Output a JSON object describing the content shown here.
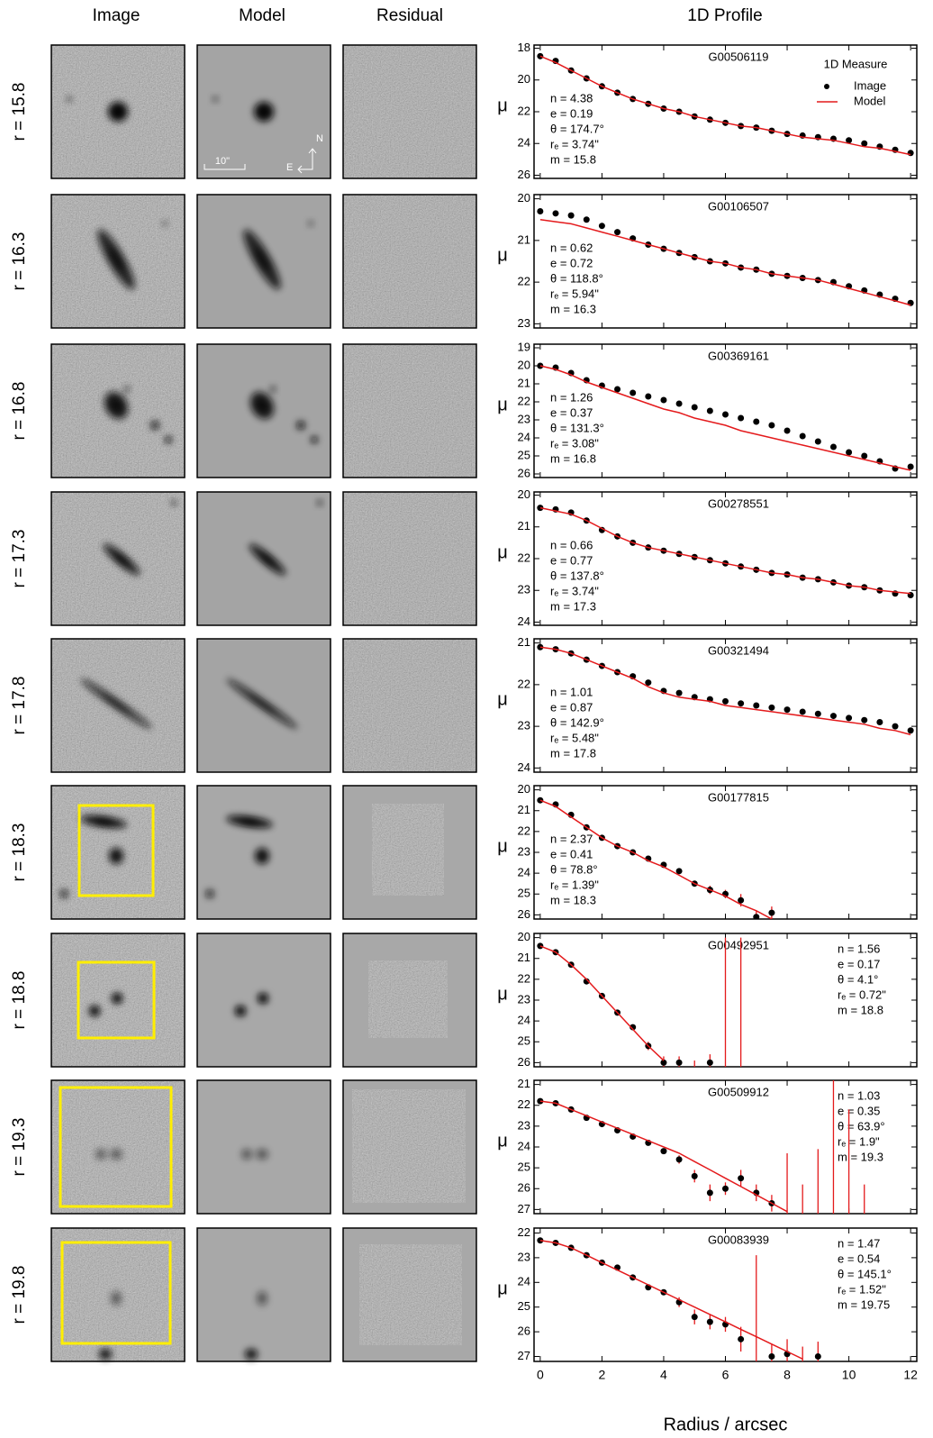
{
  "columns": [
    "Image",
    "Model",
    "Residual",
    "1D Profile"
  ],
  "panel_labels": {
    "scale_bar": "10\"",
    "north": "N",
    "east": "E"
  },
  "chart_data": [
    {
      "type": "scatter",
      "row_label": "r = 15.8",
      "title": "G00506119",
      "ylabel": "μ",
      "params": [
        "n = 4.38",
        "e = 0.19",
        "θ = 174.7°",
        "rₑ = 3.74\"",
        "m = 15.8"
      ],
      "annotation_corner": "left",
      "legend": "upper right",
      "legend_title": "1D Measure",
      "xlim": [
        -0.2,
        12.2
      ],
      "xticks": [
        0,
        2,
        4,
        6,
        8,
        10,
        12
      ],
      "ylim": [
        17.8,
        26.2
      ],
      "yticks": [
        18,
        20,
        22,
        24,
        26
      ],
      "y_inverted": true,
      "x": [
        0,
        0.5,
        1,
        1.5,
        2,
        2.5,
        3,
        3.5,
        4,
        4.5,
        5,
        5.5,
        6,
        6.5,
        7,
        7.5,
        8,
        8.5,
        9,
        9.5,
        10,
        10.5,
        11,
        11.5,
        12
      ],
      "series": [
        {
          "name": "Image",
          "color": "#000000",
          "values": [
            18.5,
            18.8,
            19.4,
            19.9,
            20.4,
            20.8,
            21.2,
            21.5,
            21.8,
            22.0,
            22.3,
            22.5,
            22.7,
            22.9,
            23.0,
            23.2,
            23.4,
            23.5,
            23.6,
            23.7,
            23.8,
            24.0,
            24.2,
            24.4,
            24.6
          ]
        },
        {
          "name": "Model",
          "color": "#e41a1c",
          "values": [
            18.5,
            18.9,
            19.4,
            19.9,
            20.4,
            20.8,
            21.2,
            21.5,
            21.8,
            22.0,
            22.3,
            22.5,
            22.7,
            22.9,
            23.0,
            23.2,
            23.4,
            23.6,
            23.7,
            23.8,
            24.0,
            24.2,
            24.3,
            24.5,
            24.7
          ]
        }
      ]
    },
    {
      "type": "scatter",
      "row_label": "r = 16.3",
      "title": "G00106507",
      "ylabel": "μ",
      "params": [
        "n = 0.62",
        "e = 0.72",
        "θ = 118.8°",
        "rₑ = 5.94\"",
        "m = 16.3"
      ],
      "annotation_corner": "left",
      "xlim": [
        -0.2,
        12.2
      ],
      "xticks": [
        0,
        2,
        4,
        6,
        8,
        10,
        12
      ],
      "ylim": [
        19.9,
        23.1
      ],
      "yticks": [
        20,
        21,
        22,
        23
      ],
      "y_inverted": true,
      "x": [
        0,
        0.5,
        1,
        1.5,
        2,
        2.5,
        3,
        3.5,
        4,
        4.5,
        5,
        5.5,
        6,
        6.5,
        7,
        7.5,
        8,
        8.5,
        9,
        9.5,
        10,
        10.5,
        11,
        11.5,
        12
      ],
      "series": [
        {
          "color": "#000000",
          "values": [
            20.3,
            20.35,
            20.4,
            20.5,
            20.65,
            20.8,
            20.95,
            21.1,
            21.2,
            21.3,
            21.4,
            21.5,
            21.55,
            21.65,
            21.7,
            21.8,
            21.85,
            21.9,
            21.95,
            22.0,
            22.1,
            22.2,
            22.3,
            22.4,
            22.5
          ]
        },
        {
          "color": "#e41a1c",
          "values": [
            20.5,
            20.55,
            20.6,
            20.7,
            20.8,
            20.9,
            21.0,
            21.1,
            21.2,
            21.3,
            21.4,
            21.5,
            21.55,
            21.65,
            21.7,
            21.8,
            21.85,
            21.9,
            21.95,
            22.05,
            22.15,
            22.25,
            22.35,
            22.45,
            22.55
          ]
        }
      ]
    },
    {
      "type": "scatter",
      "row_label": "r = 16.8",
      "title": "G00369161",
      "ylabel": "μ",
      "params": [
        "n = 1.26",
        "e = 0.37",
        "θ = 131.3°",
        "rₑ = 3.08\"",
        "m = 16.8"
      ],
      "annotation_corner": "left",
      "xlim": [
        -0.2,
        12.2
      ],
      "xticks": [
        0,
        2,
        4,
        6,
        8,
        10,
        12
      ],
      "ylim": [
        18.8,
        26.2
      ],
      "yticks": [
        19,
        20,
        21,
        22,
        23,
        24,
        25,
        26
      ],
      "y_inverted": true,
      "x": [
        0,
        0.5,
        1,
        1.5,
        2,
        2.5,
        3,
        3.5,
        4,
        4.5,
        5,
        5.5,
        6,
        6.5,
        7,
        7.5,
        8,
        8.5,
        9,
        9.5,
        10,
        10.5,
        11,
        11.5,
        12
      ],
      "series": [
        {
          "color": "#000000",
          "values": [
            20.0,
            20.1,
            20.4,
            20.8,
            21.1,
            21.3,
            21.5,
            21.7,
            21.9,
            22.1,
            22.3,
            22.5,
            22.7,
            22.9,
            23.1,
            23.3,
            23.6,
            23.9,
            24.2,
            24.5,
            24.8,
            25.0,
            25.3,
            25.7,
            25.6
          ]
        },
        {
          "color": "#e41a1c",
          "values": [
            20.0,
            20.2,
            20.5,
            20.9,
            21.2,
            21.5,
            21.8,
            22.1,
            22.4,
            22.6,
            22.9,
            23.1,
            23.3,
            23.6,
            23.8,
            24.0,
            24.2,
            24.4,
            24.6,
            24.8,
            25.0,
            25.2,
            25.4,
            25.6,
            25.8
          ]
        }
      ]
    },
    {
      "type": "scatter",
      "row_label": "r = 17.3",
      "title": "G00278551",
      "ylabel": "μ",
      "params": [
        "n = 0.66",
        "e = 0.77",
        "θ = 137.8°",
        "rₑ = 3.74\"",
        "m = 17.3"
      ],
      "annotation_corner": "left",
      "xlim": [
        -0.2,
        12.2
      ],
      "xticks": [
        0,
        2,
        4,
        6,
        8,
        10,
        12
      ],
      "ylim": [
        19.9,
        24.1
      ],
      "yticks": [
        20,
        21,
        22,
        23,
        24
      ],
      "y_inverted": true,
      "x": [
        0,
        0.5,
        1,
        1.5,
        2,
        2.5,
        3,
        3.5,
        4,
        4.5,
        5,
        5.5,
        6,
        6.5,
        7,
        7.5,
        8,
        8.5,
        9,
        9.5,
        10,
        10.5,
        11,
        11.5,
        12
      ],
      "series": [
        {
          "color": "#000000",
          "values": [
            20.4,
            20.45,
            20.55,
            20.8,
            21.1,
            21.3,
            21.5,
            21.65,
            21.75,
            21.85,
            21.95,
            22.05,
            22.15,
            22.25,
            22.35,
            22.45,
            22.5,
            22.6,
            22.65,
            22.75,
            22.85,
            22.9,
            23.0,
            23.1,
            23.15
          ]
        },
        {
          "color": "#e41a1c",
          "values": [
            20.4,
            20.5,
            20.6,
            20.8,
            21.05,
            21.3,
            21.5,
            21.65,
            21.75,
            21.85,
            21.95,
            22.05,
            22.15,
            22.25,
            22.35,
            22.45,
            22.5,
            22.6,
            22.65,
            22.75,
            22.85,
            22.9,
            23.0,
            23.05,
            23.1
          ]
        }
      ]
    },
    {
      "type": "scatter",
      "row_label": "r = 17.8",
      "title": "G00321494",
      "ylabel": "μ",
      "params": [
        "n = 1.01",
        "e = 0.87",
        "θ = 142.9°",
        "rₑ = 5.48\"",
        "m = 17.8"
      ],
      "annotation_corner": "left",
      "xlim": [
        -0.2,
        12.2
      ],
      "xticks": [
        0,
        2,
        4,
        6,
        8,
        10,
        12
      ],
      "ylim": [
        20.9,
        24.1
      ],
      "yticks": [
        21,
        22,
        23,
        24
      ],
      "y_inverted": true,
      "x": [
        0,
        0.5,
        1,
        1.5,
        2,
        2.5,
        3,
        3.5,
        4,
        4.5,
        5,
        5.5,
        6,
        6.5,
        7,
        7.5,
        8,
        8.5,
        9,
        9.5,
        10,
        10.5,
        11,
        11.5,
        12
      ],
      "series": [
        {
          "color": "#000000",
          "values": [
            21.1,
            21.15,
            21.25,
            21.4,
            21.55,
            21.7,
            21.8,
            21.95,
            22.15,
            22.2,
            22.3,
            22.35,
            22.4,
            22.45,
            22.5,
            22.55,
            22.6,
            22.65,
            22.7,
            22.75,
            22.8,
            22.85,
            22.9,
            23.0,
            23.1
          ]
        },
        {
          "color": "#e41a1c",
          "values": [
            21.1,
            21.15,
            21.25,
            21.4,
            21.55,
            21.7,
            21.85,
            22.05,
            22.2,
            22.3,
            22.35,
            22.4,
            22.5,
            22.55,
            22.6,
            22.65,
            22.7,
            22.75,
            22.8,
            22.85,
            22.9,
            22.95,
            23.05,
            23.1,
            23.2
          ]
        }
      ]
    },
    {
      "type": "scatter",
      "row_label": "r = 18.3",
      "title": "G00177815",
      "ylabel": "μ",
      "params": [
        "n = 2.37",
        "e = 0.41",
        "θ = 78.8°",
        "rₑ = 1.39\"",
        "m = 18.3"
      ],
      "annotation_corner": "left",
      "xlim": [
        -0.2,
        12.2
      ],
      "xticks": [
        0,
        2,
        4,
        6,
        8,
        10,
        12
      ],
      "ylim": [
        19.8,
        26.2
      ],
      "yticks": [
        20,
        21,
        22,
        23,
        24,
        25,
        26
      ],
      "y_inverted": true,
      "x": [
        0,
        0.5,
        1,
        1.5,
        2,
        2.5,
        3,
        3.5,
        4,
        4.5,
        5,
        5.5,
        6,
        6.5,
        7,
        7.5
      ],
      "series": [
        {
          "color": "#000000",
          "values": [
            20.5,
            20.7,
            21.2,
            21.8,
            22.3,
            22.7,
            23.0,
            23.3,
            23.6,
            23.9,
            24.5,
            24.8,
            25.0,
            25.3,
            26.1,
            25.9
          ],
          "errors": [
            null,
            null,
            null,
            null,
            null,
            null,
            null,
            null,
            null,
            null,
            0.1,
            0.2,
            0.2,
            0.3,
            0.3,
            0.3
          ]
        },
        {
          "color": "#e41a1c",
          "values": [
            20.5,
            20.8,
            21.3,
            21.8,
            22.3,
            22.7,
            23.0,
            23.4,
            23.7,
            24.1,
            24.5,
            24.8,
            25.1,
            25.5,
            25.8,
            26.2
          ]
        }
      ]
    },
    {
      "type": "scatter",
      "row_label": "r = 18.8",
      "title": "G00492951",
      "ylabel": "μ",
      "params": [
        "n = 1.56",
        "e = 0.17",
        "θ = 4.1°",
        "rₑ = 0.72\"",
        "m = 18.8"
      ],
      "annotation_corner": "right",
      "xlim": [
        -0.2,
        12.2
      ],
      "xticks": [
        0,
        2,
        4,
        6,
        8,
        10,
        12
      ],
      "ylim": [
        19.8,
        26.2
      ],
      "yticks": [
        20,
        21,
        22,
        23,
        24,
        25,
        26
      ],
      "y_inverted": true,
      "x": [
        0,
        0.5,
        1,
        1.5,
        2,
        2.5,
        3,
        3.5,
        4,
        4.5,
        5,
        5.5,
        6,
        6.5
      ],
      "series": [
        {
          "color": "#000000",
          "values": [
            20.4,
            20.7,
            21.3,
            22.1,
            22.8,
            23.6,
            24.3,
            25.2,
            26.0,
            26.0,
            26.4,
            26.0,
            26.5,
            26.5
          ],
          "errors": [
            null,
            null,
            null,
            null,
            null,
            null,
            0.1,
            0.2,
            0.3,
            0.3,
            0.5,
            0.4,
            6.5,
            6.5
          ]
        },
        {
          "color": "#e41a1c",
          "values": [
            20.4,
            20.7,
            21.3,
            22.0,
            22.8,
            23.6,
            24.4,
            25.2,
            25.9,
            null,
            null,
            null,
            null,
            null
          ]
        }
      ]
    },
    {
      "type": "scatter",
      "row_label": "r = 19.3",
      "title": "G00509912",
      "ylabel": "μ",
      "params": [
        "n = 1.03",
        "e = 0.35",
        "θ = 63.9°",
        "rₑ = 1.9\"",
        "m = 19.3"
      ],
      "annotation_corner": "right",
      "xlim": [
        -0.2,
        12.2
      ],
      "xticks": [
        0,
        2,
        4,
        6,
        8,
        10,
        12
      ],
      "ylim": [
        20.8,
        27.2
      ],
      "yticks": [
        21,
        22,
        23,
        24,
        25,
        26,
        27
      ],
      "y_inverted": true,
      "x": [
        0,
        0.5,
        1,
        1.5,
        2,
        2.5,
        3,
        3.5,
        4,
        4.5,
        5,
        5.5,
        6,
        6.5,
        7,
        7.5,
        8,
        8.5,
        9,
        9.5,
        10,
        10.5
      ],
      "series": [
        {
          "color": "#000000",
          "values": [
            21.8,
            21.9,
            22.2,
            22.6,
            22.9,
            23.2,
            23.5,
            23.8,
            24.2,
            24.6,
            25.4,
            26.2,
            26.0,
            25.5,
            26.2,
            26.7,
            27.5,
            27.5,
            27.5,
            27.5,
            27.5,
            27.5
          ],
          "errors": [
            null,
            null,
            null,
            null,
            null,
            null,
            null,
            null,
            null,
            0.2,
            0.3,
            0.4,
            0.3,
            0.4,
            0.4,
            0.4,
            3.2,
            1.7,
            3.4,
            7,
            5.3,
            1.7
          ]
        },
        {
          "color": "#e41a1c",
          "values": [
            21.8,
            21.9,
            22.2,
            22.5,
            22.8,
            23.1,
            23.4,
            23.7,
            24.0,
            24.3,
            24.7,
            25.1,
            25.5,
            25.9,
            26.3,
            26.7,
            27.1,
            null,
            null,
            null,
            null,
            null
          ]
        }
      ]
    },
    {
      "type": "scatter",
      "row_label": "r = 19.8",
      "title": "G00083939",
      "ylabel": "μ",
      "params": [
        "n = 1.47",
        "e = 0.54",
        "θ = 145.1°",
        "rₑ = 1.52\"",
        "m = 19.75"
      ],
      "annotation_corner": "right",
      "xlim": [
        -0.2,
        12.2
      ],
      "xticks": [
        0,
        2,
        4,
        6,
        8,
        10,
        12
      ],
      "ylim": [
        21.8,
        27.2
      ],
      "yticks": [
        22,
        23,
        24,
        25,
        26,
        27
      ],
      "y_inverted": true,
      "xlabel": "Radius / arcsec",
      "xtick_labels": true,
      "x": [
        0,
        0.5,
        1,
        1.5,
        2,
        2.5,
        3,
        3.5,
        4,
        4.5,
        5,
        5.5,
        6,
        6.5,
        7,
        7.5,
        8,
        8.5,
        9
      ],
      "series": [
        {
          "color": "#000000",
          "values": [
            22.3,
            22.4,
            22.6,
            22.9,
            23.2,
            23.4,
            23.8,
            24.2,
            24.4,
            24.8,
            25.4,
            25.6,
            25.7,
            26.3,
            27.5,
            27.0,
            26.9,
            27.5,
            27.0
          ],
          "errors": [
            null,
            null,
            null,
            null,
            null,
            null,
            null,
            null,
            null,
            0.2,
            0.3,
            0.3,
            0.3,
            0.5,
            4.6,
            0.5,
            0.6,
            0.9,
            0.6
          ]
        },
        {
          "color": "#e41a1c",
          "values": [
            22.3,
            22.4,
            22.6,
            22.9,
            23.2,
            23.5,
            23.8,
            24.1,
            24.4,
            24.7,
            25.0,
            25.3,
            25.6,
            25.9,
            26.2,
            26.5,
            26.8,
            27.1,
            null
          ]
        }
      ]
    }
  ]
}
